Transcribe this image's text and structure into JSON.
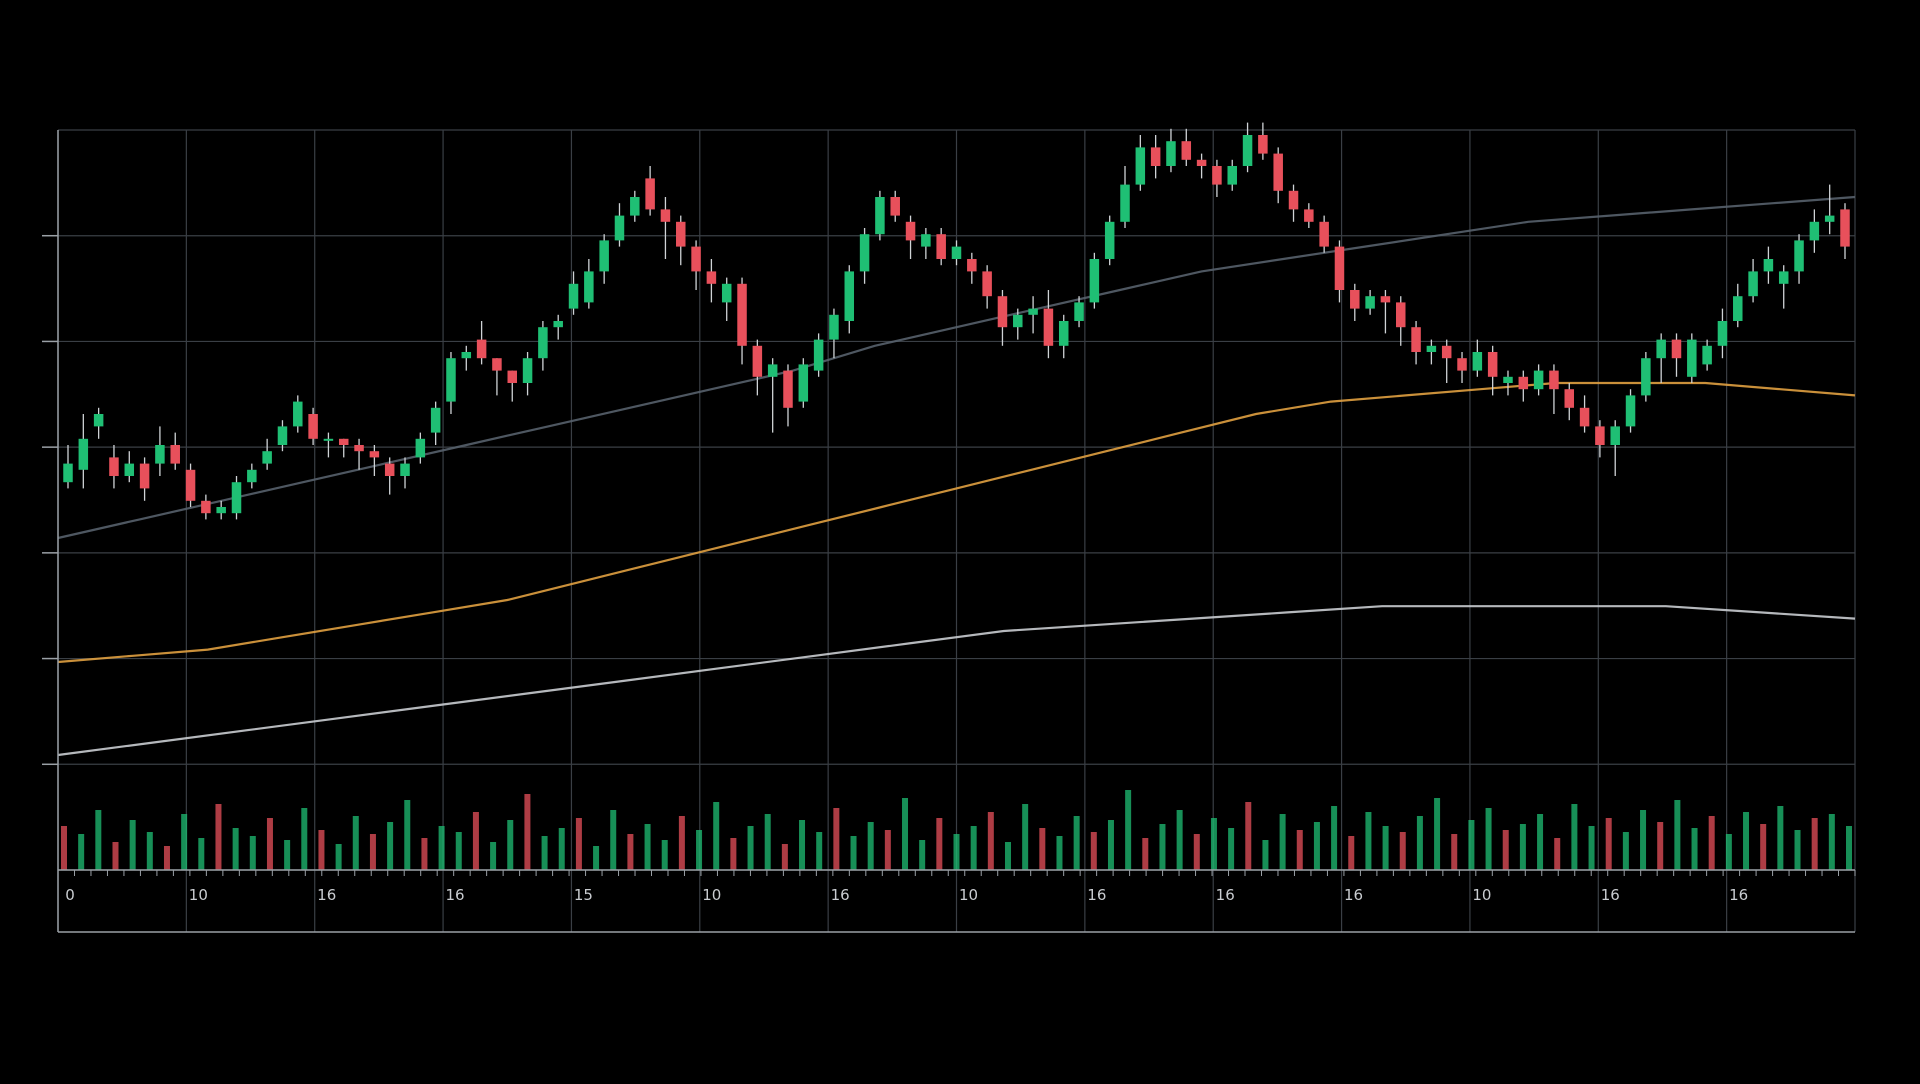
{
  "chart_data": {
    "type": "candlestick",
    "grid": true,
    "background_color": "#000000",
    "colors": {
      "up": "#1fbf74",
      "down": "#e8505b",
      "grid": "#3a3f45",
      "ma_fast": "#56616b",
      "ma_mid": "#e0a040",
      "ma_slow": "#c9ccd0"
    },
    "x_tick_labels": [
      "0",
      "10",
      "16",
      "16",
      "15",
      "10",
      "16",
      "10",
      "16",
      "16",
      "16",
      "10",
      "16",
      "16"
    ],
    "ylim": [
      0,
      100
    ],
    "candles": [
      {
        "o": 44,
        "c": 47,
        "h": 50,
        "l": 43
      },
      {
        "o": 46,
        "c": 51,
        "h": 55,
        "l": 43
      },
      {
        "o": 53,
        "c": 55,
        "h": 56,
        "l": 51
      },
      {
        "o": 48,
        "c": 45,
        "h": 50,
        "l": 43
      },
      {
        "o": 45,
        "c": 47,
        "h": 49,
        "l": 44
      },
      {
        "o": 47,
        "c": 43,
        "h": 48,
        "l": 41
      },
      {
        "o": 47,
        "c": 50,
        "h": 53,
        "l": 45
      },
      {
        "o": 50,
        "c": 47,
        "h": 52,
        "l": 46
      },
      {
        "o": 46,
        "c": 41,
        "h": 47,
        "l": 40
      },
      {
        "o": 41,
        "c": 39,
        "h": 42,
        "l": 38
      },
      {
        "o": 39,
        "c": 40,
        "h": 41,
        "l": 38
      },
      {
        "o": 39,
        "c": 44,
        "h": 45,
        "l": 38
      },
      {
        "o": 44,
        "c": 46,
        "h": 47,
        "l": 43
      },
      {
        "o": 47,
        "c": 49,
        "h": 51,
        "l": 46
      },
      {
        "o": 50,
        "c": 53,
        "h": 54,
        "l": 49
      },
      {
        "o": 53,
        "c": 57,
        "h": 58,
        "l": 52
      },
      {
        "o": 55,
        "c": 51,
        "h": 56,
        "l": 50
      },
      {
        "o": 51,
        "c": 51,
        "h": 52,
        "l": 48
      },
      {
        "o": 51,
        "c": 50,
        "h": 51,
        "l": 48
      },
      {
        "o": 50,
        "c": 49,
        "h": 51,
        "l": 46
      },
      {
        "o": 49,
        "c": 48,
        "h": 50,
        "l": 45
      },
      {
        "o": 47,
        "c": 45,
        "h": 48,
        "l": 42
      },
      {
        "o": 45,
        "c": 47,
        "h": 48,
        "l": 43
      },
      {
        "o": 48,
        "c": 51,
        "h": 52,
        "l": 47
      },
      {
        "o": 52,
        "c": 56,
        "h": 57,
        "l": 50
      },
      {
        "o": 57,
        "c": 64,
        "h": 65,
        "l": 55
      },
      {
        "o": 64,
        "c": 65,
        "h": 66,
        "l": 62
      },
      {
        "o": 67,
        "c": 64,
        "h": 70,
        "l": 63
      },
      {
        "o": 64,
        "c": 62,
        "h": 64,
        "l": 58
      },
      {
        "o": 62,
        "c": 60,
        "h": 62,
        "l": 57
      },
      {
        "o": 60,
        "c": 64,
        "h": 65,
        "l": 58
      },
      {
        "o": 64,
        "c": 69,
        "h": 70,
        "l": 62
      },
      {
        "o": 69,
        "c": 70,
        "h": 71,
        "l": 67
      },
      {
        "o": 72,
        "c": 76,
        "h": 78,
        "l": 71
      },
      {
        "o": 73,
        "c": 78,
        "h": 80,
        "l": 72
      },
      {
        "o": 78,
        "c": 83,
        "h": 84,
        "l": 76
      },
      {
        "o": 83,
        "c": 87,
        "h": 89,
        "l": 82
      },
      {
        "o": 87,
        "c": 90,
        "h": 91,
        "l": 86
      },
      {
        "o": 93,
        "c": 88,
        "h": 95,
        "l": 87
      },
      {
        "o": 88,
        "c": 86,
        "h": 90,
        "l": 80
      },
      {
        "o": 86,
        "c": 82,
        "h": 87,
        "l": 79
      },
      {
        "o": 82,
        "c": 78,
        "h": 83,
        "l": 75
      },
      {
        "o": 78,
        "c": 76,
        "h": 80,
        "l": 73
      },
      {
        "o": 73,
        "c": 76,
        "h": 77,
        "l": 70
      },
      {
        "o": 76,
        "c": 66,
        "h": 77,
        "l": 63
      },
      {
        "o": 66,
        "c": 61,
        "h": 67,
        "l": 58
      },
      {
        "o": 61,
        "c": 63,
        "h": 64,
        "l": 52
      },
      {
        "o": 62,
        "c": 56,
        "h": 63,
        "l": 53
      },
      {
        "o": 57,
        "c": 63,
        "h": 64,
        "l": 56
      },
      {
        "o": 62,
        "c": 67,
        "h": 68,
        "l": 61
      },
      {
        "o": 67,
        "c": 71,
        "h": 72,
        "l": 64
      },
      {
        "o": 70,
        "c": 78,
        "h": 79,
        "l": 68
      },
      {
        "o": 78,
        "c": 84,
        "h": 85,
        "l": 76
      },
      {
        "o": 84,
        "c": 90,
        "h": 91,
        "l": 83
      },
      {
        "o": 90,
        "c": 87,
        "h": 91,
        "l": 86
      },
      {
        "o": 86,
        "c": 83,
        "h": 87,
        "l": 80
      },
      {
        "o": 82,
        "c": 84,
        "h": 85,
        "l": 80
      },
      {
        "o": 84,
        "c": 80,
        "h": 85,
        "l": 79
      },
      {
        "o": 80,
        "c": 82,
        "h": 83,
        "l": 79
      },
      {
        "o": 80,
        "c": 78,
        "h": 81,
        "l": 76
      },
      {
        "o": 78,
        "c": 74,
        "h": 79,
        "l": 72
      },
      {
        "o": 74,
        "c": 69,
        "h": 75,
        "l": 66
      },
      {
        "o": 69,
        "c": 71,
        "h": 72,
        "l": 67
      },
      {
        "o": 71,
        "c": 72,
        "h": 74,
        "l": 68
      },
      {
        "o": 72,
        "c": 66,
        "h": 75,
        "l": 64
      },
      {
        "o": 66,
        "c": 70,
        "h": 71,
        "l": 64
      },
      {
        "o": 70,
        "c": 73,
        "h": 74,
        "l": 69
      },
      {
        "o": 73,
        "c": 80,
        "h": 81,
        "l": 72
      },
      {
        "o": 80,
        "c": 86,
        "h": 87,
        "l": 79
      },
      {
        "o": 86,
        "c": 92,
        "h": 95,
        "l": 85
      },
      {
        "o": 92,
        "c": 98,
        "h": 100,
        "l": 91
      },
      {
        "o": 98,
        "c": 95,
        "h": 100,
        "l": 93
      },
      {
        "o": 95,
        "c": 99,
        "h": 101,
        "l": 94
      },
      {
        "o": 99,
        "c": 96,
        "h": 101,
        "l": 95
      },
      {
        "o": 96,
        "c": 95,
        "h": 97,
        "l": 93
      },
      {
        "o": 95,
        "c": 92,
        "h": 96,
        "l": 90
      },
      {
        "o": 92,
        "c": 95,
        "h": 96,
        "l": 91
      },
      {
        "o": 95,
        "c": 100,
        "h": 102,
        "l": 94
      },
      {
        "o": 100,
        "c": 97,
        "h": 102,
        "l": 96
      },
      {
        "o": 97,
        "c": 91,
        "h": 98,
        "l": 89
      },
      {
        "o": 91,
        "c": 88,
        "h": 92,
        "l": 86
      },
      {
        "o": 88,
        "c": 86,
        "h": 89,
        "l": 85
      },
      {
        "o": 86,
        "c": 82,
        "h": 87,
        "l": 81
      },
      {
        "o": 82,
        "c": 75,
        "h": 83,
        "l": 73
      },
      {
        "o": 75,
        "c": 72,
        "h": 76,
        "l": 70
      },
      {
        "o": 72,
        "c": 74,
        "h": 75,
        "l": 71
      },
      {
        "o": 74,
        "c": 73,
        "h": 75,
        "l": 68
      },
      {
        "o": 73,
        "c": 69,
        "h": 74,
        "l": 66
      },
      {
        "o": 69,
        "c": 65,
        "h": 70,
        "l": 63
      },
      {
        "o": 65,
        "c": 66,
        "h": 67,
        "l": 63
      },
      {
        "o": 66,
        "c": 64,
        "h": 67,
        "l": 60
      },
      {
        "o": 64,
        "c": 62,
        "h": 65,
        "l": 60
      },
      {
        "o": 62,
        "c": 65,
        "h": 67,
        "l": 61
      },
      {
        "o": 65,
        "c": 61,
        "h": 66,
        "l": 58
      },
      {
        "o": 60,
        "c": 61,
        "h": 62,
        "l": 58
      },
      {
        "o": 61,
        "c": 59,
        "h": 62,
        "l": 57
      },
      {
        "o": 59,
        "c": 62,
        "h": 63,
        "l": 58
      },
      {
        "o": 62,
        "c": 59,
        "h": 63,
        "l": 55
      },
      {
        "o": 59,
        "c": 56,
        "h": 60,
        "l": 54
      },
      {
        "o": 56,
        "c": 53,
        "h": 58,
        "l": 52
      },
      {
        "o": 53,
        "c": 50,
        "h": 54,
        "l": 48
      },
      {
        "o": 50,
        "c": 53,
        "h": 54,
        "l": 45
      },
      {
        "o": 53,
        "c": 58,
        "h": 59,
        "l": 52
      },
      {
        "o": 58,
        "c": 64,
        "h": 65,
        "l": 57
      },
      {
        "o": 64,
        "c": 67,
        "h": 68,
        "l": 60
      },
      {
        "o": 67,
        "c": 64,
        "h": 68,
        "l": 61
      },
      {
        "o": 61,
        "c": 67,
        "h": 68,
        "l": 60
      },
      {
        "o": 63,
        "c": 66,
        "h": 67,
        "l": 62
      },
      {
        "o": 66,
        "c": 70,
        "h": 72,
        "l": 64
      },
      {
        "o": 70,
        "c": 74,
        "h": 76,
        "l": 69
      },
      {
        "o": 74,
        "c": 78,
        "h": 80,
        "l": 73
      },
      {
        "o": 78,
        "c": 80,
        "h": 82,
        "l": 76
      },
      {
        "o": 76,
        "c": 78,
        "h": 79,
        "l": 72
      },
      {
        "o": 78,
        "c": 83,
        "h": 84,
        "l": 76
      },
      {
        "o": 83,
        "c": 86,
        "h": 88,
        "l": 81
      },
      {
        "o": 86,
        "c": 87,
        "h": 92,
        "l": 84
      },
      {
        "o": 88,
        "c": 82,
        "h": 89,
        "l": 80
      }
    ],
    "moving_averages": [
      {
        "role": "fast",
        "values": [
          35,
          38,
          41,
          44,
          47,
          50,
          53,
          56,
          59,
          62,
          66,
          69,
          72,
          75,
          78,
          80,
          82,
          84,
          86,
          87,
          88,
          89,
          90
        ]
      },
      {
        "role": "mid",
        "values": [
          15,
          16,
          17,
          19,
          21,
          23,
          25,
          28,
          31,
          34,
          37,
          40,
          43,
          46,
          49,
          52,
          55,
          57,
          58,
          59,
          60,
          60,
          60,
          59,
          58
        ]
      },
      {
        "role": "slow",
        "values": [
          0,
          2,
          4,
          6,
          8,
          10,
          12,
          14,
          16,
          18,
          20,
          21,
          22,
          23,
          24,
          24,
          24,
          24,
          23,
          22
        ]
      }
    ],
    "volume": [
      22,
      18,
      30,
      14,
      25,
      19,
      12,
      28,
      16,
      33,
      21,
      17,
      26,
      15,
      31,
      20,
      13,
      27,
      18,
      24,
      35,
      16,
      22,
      19,
      29,
      14,
      25,
      38,
      17,
      21,
      26,
      12,
      30,
      18,
      23,
      15,
      27,
      20,
      34,
      16,
      22,
      28,
      13,
      25,
      19,
      31,
      17,
      24,
      20,
      36,
      15,
      26,
      18,
      22,
      29,
      14,
      33,
      21,
      17,
      27,
      19,
      25,
      40,
      16,
      23,
      30,
      18,
      26,
      21,
      34,
      15,
      28,
      20,
      24,
      32,
      17,
      29,
      22,
      19,
      27,
      36,
      18,
      25,
      31,
      20,
      23,
      28,
      16,
      33,
      22,
      26,
      19,
      30,
      24,
      35,
      21,
      27,
      18,
      29,
      23,
      32,
      20,
      26,
      28,
      22
    ],
    "volume_max": 45
  }
}
